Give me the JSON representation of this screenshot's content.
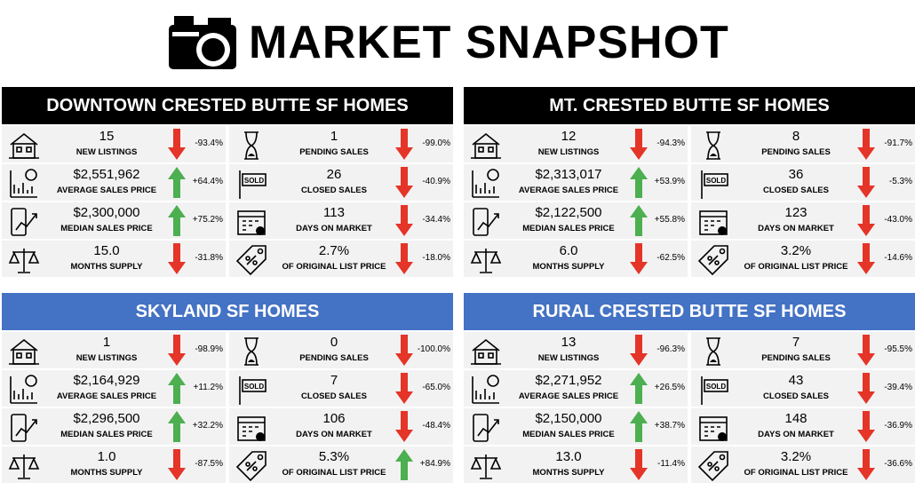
{
  "title": "MARKET SNAPSHOT",
  "panels": [
    {
      "title": "DOWNTOWN CRESTED BUTTE SF HOMES",
      "metrics": [
        {
          "value": "15",
          "label": "NEW LISTINGS",
          "change": "-93.4%"
        },
        {
          "value": "1",
          "label": "PENDING SALES",
          "change": "-99.0%"
        },
        {
          "value": "$2,551,962",
          "label": "AVERAGE SALES PRICE",
          "change": "+64.4%"
        },
        {
          "value": "26",
          "label": "CLOSED SALES",
          "change": "-40.9%"
        },
        {
          "value": "$2,300,000",
          "label": "MEDIAN SALES PRICE",
          "change": "+75.2%"
        },
        {
          "value": "113",
          "label": "DAYS ON MARKET",
          "change": "-34.4%"
        },
        {
          "value": "15.0",
          "label": "MONTHS SUPPLY",
          "change": "-31.8%"
        },
        {
          "value": "2.7%",
          "label": "OF ORIGINAL LIST PRICE",
          "change": "-18.0%"
        }
      ]
    },
    {
      "title": "MT. CRESTED BUTTE SF HOMES",
      "metrics": [
        {
          "value": "12",
          "label": "NEW LISTINGS",
          "change": "-94.3%"
        },
        {
          "value": "8",
          "label": "PENDING SALES",
          "change": "-91.7%"
        },
        {
          "value": "$2,313,017",
          "label": "AVERAGE SALES PRICE",
          "change": "+53.9%"
        },
        {
          "value": "36",
          "label": "CLOSED SALES",
          "change": "-5.3%"
        },
        {
          "value": "$2,122,500",
          "label": "MEDIAN SALES PRICE",
          "change": "+55.8%"
        },
        {
          "value": "123",
          "label": "DAYS ON MARKET",
          "change": "-43.0%"
        },
        {
          "value": "6.0",
          "label": "MONTHS SUPPLY",
          "change": "-62.5%"
        },
        {
          "value": "3.2%",
          "label": "OF ORIGINAL LIST PRICE",
          "change": "-14.6%"
        }
      ]
    },
    {
      "title": "SKYLAND SF HOMES",
      "metrics": [
        {
          "value": "1",
          "label": "NEW LISTINGS",
          "change": "-98.9%"
        },
        {
          "value": "0",
          "label": "PENDING SALES",
          "change": "-100.0%"
        },
        {
          "value": "$2,164,929",
          "label": "AVERAGE SALES PRICE",
          "change": "+11.2%"
        },
        {
          "value": "7",
          "label": "CLOSED SALES",
          "change": "-65.0%"
        },
        {
          "value": "$2,296,500",
          "label": "MEDIAN SALES PRICE",
          "change": "+32.2%"
        },
        {
          "value": "106",
          "label": "DAYS ON MARKET",
          "change": "-48.4%"
        },
        {
          "value": "1.0",
          "label": "MONTHS SUPPLY",
          "change": "-87.5%"
        },
        {
          "value": "5.3%",
          "label": "OF ORIGINAL LIST PRICE",
          "change": "+84.9%"
        }
      ]
    },
    {
      "title": "RURAL CRESTED BUTTE SF HOMES",
      "metrics": [
        {
          "value": "13",
          "label": "NEW LISTINGS",
          "change": "-96.3%"
        },
        {
          "value": "7",
          "label": "PENDING SALES",
          "change": "-95.5%"
        },
        {
          "value": "$2,271,952",
          "label": "AVERAGE SALES PRICE",
          "change": "+26.5%"
        },
        {
          "value": "43",
          "label": "CLOSED SALES",
          "change": "-39.4%"
        },
        {
          "value": "$2,150,000",
          "label": "MEDIAN SALES PRICE",
          "change": "+38.7%"
        },
        {
          "value": "148",
          "label": "DAYS ON MARKET",
          "change": "-36.9%"
        },
        {
          "value": "13.0",
          "label": "MONTHS SUPPLY",
          "change": "-11.4%"
        },
        {
          "value": "3.2%",
          "label": "OF ORIGINAL LIST PRICE",
          "change": "-36.6%"
        }
      ]
    }
  ]
}
